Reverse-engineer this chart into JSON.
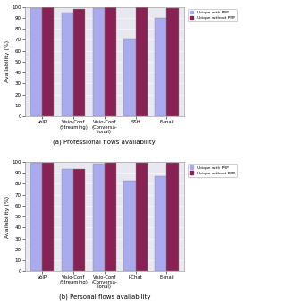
{
  "subplot_a": {
    "title": "(a) Professional flows availability",
    "categories": [
      "VoIP",
      "Visio-Conf\n(Streaming)",
      "Visio-Conf\n(Conversa-\ntional)",
      "SSH",
      "E-mail"
    ],
    "values_with_prp": [
      99,
      95,
      99,
      70,
      90
    ],
    "values_without_prp": [
      100,
      98,
      100,
      100,
      99
    ],
    "ylabel": "Availability (%)",
    "ylim": [
      0,
      100
    ],
    "yticks": [
      0,
      10,
      20,
      30,
      40,
      50,
      60,
      70,
      80,
      90,
      100
    ]
  },
  "subplot_b": {
    "title": "(b) Personal flows availability",
    "categories": [
      "VoIP",
      "Visio-Conf\n(Streaming)",
      "Visio-Conf\n(Conversa-\ntional)",
      "I-Chat",
      "E-mail"
    ],
    "values_with_prp": [
      99,
      93,
      98,
      83,
      87
    ],
    "values_without_prp": [
      99,
      93,
      99,
      99,
      99
    ],
    "ylabel": "Availability (%)",
    "ylim": [
      0,
      100
    ],
    "yticks": [
      0,
      10,
      20,
      30,
      40,
      50,
      60,
      70,
      80,
      90,
      100
    ]
  },
  "color_with_prp": "#aaaaee",
  "color_without_prp": "#882255",
  "legend_labels": [
    "Ubique with PRP",
    "Ubique without PRP"
  ],
  "bar_width": 0.38,
  "background_color": "#e8e8f0"
}
